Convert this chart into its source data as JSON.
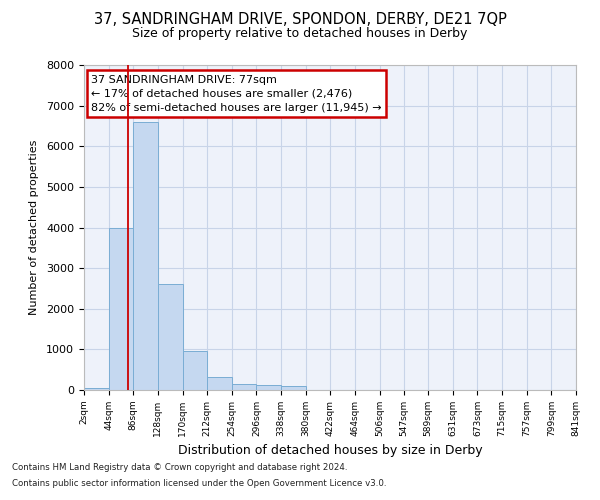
{
  "title_line1": "37, SANDRINGHAM DRIVE, SPONDON, DERBY, DE21 7QP",
  "title_line2": "Size of property relative to detached houses in Derby",
  "xlabel": "Distribution of detached houses by size in Derby",
  "ylabel": "Number of detached properties",
  "footer_line1": "Contains HM Land Registry data © Crown copyright and database right 2024.",
  "footer_line2": "Contains public sector information licensed under the Open Government Licence v3.0.",
  "annotation_line1": "37 SANDRINGHAM DRIVE: 77sqm",
  "annotation_line2": "← 17% of detached houses are smaller (2,476)",
  "annotation_line3": "82% of semi-detached houses are larger (11,945) →",
  "property_size": 77,
  "bin_edges": [
    2,
    44,
    86,
    128,
    170,
    212,
    254,
    296,
    338,
    380,
    422,
    464,
    506,
    547,
    589,
    631,
    673,
    715,
    757,
    799,
    841
  ],
  "bar_heights": [
    50,
    4000,
    6600,
    2600,
    950,
    330,
    150,
    130,
    90,
    0,
    0,
    0,
    0,
    0,
    0,
    0,
    0,
    0,
    0,
    0
  ],
  "bar_color": "#c5d8f0",
  "bar_edge_color": "#7aadd4",
  "red_line_color": "#cc0000",
  "annotation_box_color": "#cc0000",
  "grid_color": "#c8d4e8",
  "bg_color": "#eef2fa",
  "ylim": [
    0,
    8000
  ],
  "yticks": [
    0,
    1000,
    2000,
    3000,
    4000,
    5000,
    6000,
    7000,
    8000
  ]
}
